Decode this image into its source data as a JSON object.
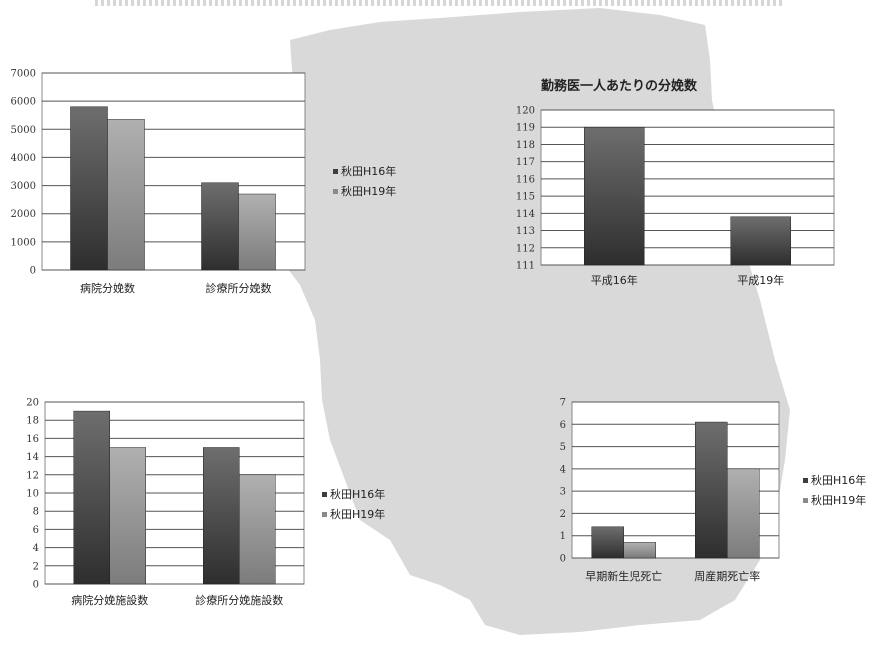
{
  "colors": {
    "series_h16": "#3d3d3d",
    "series_h19": "#8a8a8a",
    "map_fill": "#d9d9d9"
  },
  "chart_data": [
    {
      "id": "deliveries",
      "type": "bar",
      "categories": [
        "病院分娩数",
        "診療所分娩数"
      ],
      "series": [
        {
          "name": "秋田H16年",
          "values": [
            5800,
            3100
          ]
        },
        {
          "name": "秋田H19年",
          "values": [
            5350,
            2700
          ]
        }
      ],
      "ylim": [
        0,
        7000
      ],
      "yticks": [
        0,
        1000,
        2000,
        3000,
        4000,
        5000,
        6000,
        7000
      ],
      "grid": true,
      "legend": "right"
    },
    {
      "id": "per-doctor",
      "type": "bar",
      "title": "勤務医一人あたりの分娩数",
      "categories": [
        "平成16年",
        "平成19年"
      ],
      "series": [
        {
          "values": [
            119,
            113.8
          ]
        }
      ],
      "ylim": [
        111,
        120
      ],
      "yticks": [
        111,
        112,
        113,
        114,
        115,
        116,
        117,
        118,
        119,
        120
      ],
      "grid": true
    },
    {
      "id": "facilities",
      "type": "bar",
      "categories": [
        "病院分娩施設数",
        "診療所分娩施設数"
      ],
      "series": [
        {
          "name": "秋田H16年",
          "values": [
            19,
            15
          ]
        },
        {
          "name": "秋田H19年",
          "values": [
            15,
            12
          ]
        }
      ],
      "ylim": [
        0,
        20
      ],
      "yticks": [
        0,
        2,
        4,
        6,
        8,
        10,
        12,
        14,
        16,
        18,
        20
      ],
      "grid": true,
      "legend": "right"
    },
    {
      "id": "mortality",
      "type": "bar",
      "categories": [
        "早期新生児死亡",
        "周産期死亡率"
      ],
      "series": [
        {
          "name": "秋田H16年",
          "values": [
            1.4,
            6.1
          ]
        },
        {
          "name": "秋田H19年",
          "values": [
            0.7,
            4.0
          ]
        }
      ],
      "ylim": [
        0,
        7
      ],
      "yticks": [
        0,
        1,
        2,
        3,
        4,
        5,
        6,
        7
      ],
      "grid": true,
      "legend": "right"
    }
  ]
}
